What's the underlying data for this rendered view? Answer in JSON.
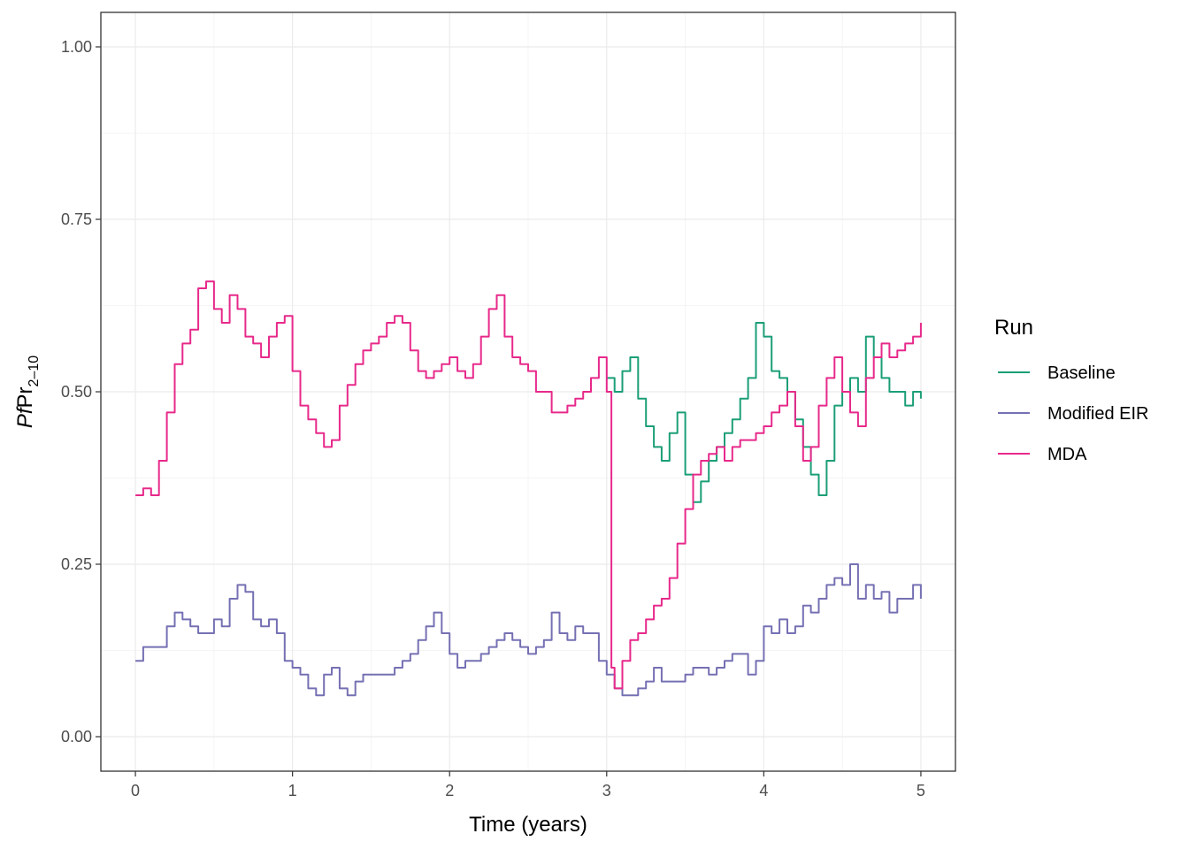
{
  "chart_data": {
    "type": "line",
    "xlabel": "Time (years)",
    "ylabel": {
      "italic": "Pf",
      "main": "Pr",
      "sub": "2–10"
    },
    "xlim": [
      -0.22,
      5.22
    ],
    "ylim": [
      -0.05,
      1.05
    ],
    "x_ticks": [
      0,
      1,
      2,
      3,
      4,
      5
    ],
    "x_tick_labels": [
      "0",
      "1",
      "2",
      "3",
      "4",
      "5"
    ],
    "y_ticks": [
      0,
      0.25,
      0.5,
      0.75,
      1.0
    ],
    "y_tick_labels": [
      "0.00",
      "0.25",
      "0.50",
      "0.75",
      "1.00"
    ],
    "grid": true,
    "legend": {
      "title": "Run",
      "placement": "right"
    },
    "series": [
      {
        "name": "Baseline",
        "color": "#1b9e77",
        "x": [
          3.0,
          3.05,
          3.1,
          3.15,
          3.2,
          3.25,
          3.3,
          3.35,
          3.4,
          3.45,
          3.5,
          3.55,
          3.6,
          3.65,
          3.7,
          3.75,
          3.8,
          3.85,
          3.9,
          3.95,
          4.0,
          4.05,
          4.1,
          4.15,
          4.2,
          4.25,
          4.3,
          4.35,
          4.4,
          4.45,
          4.5,
          4.55,
          4.6,
          4.65,
          4.7,
          4.75,
          4.8,
          4.85,
          4.9,
          4.95,
          5.0
        ],
        "values": [
          0.52,
          0.5,
          0.53,
          0.55,
          0.49,
          0.45,
          0.42,
          0.4,
          0.44,
          0.47,
          0.38,
          0.34,
          0.37,
          0.4,
          0.42,
          0.44,
          0.46,
          0.49,
          0.52,
          0.6,
          0.58,
          0.53,
          0.52,
          0.5,
          0.46,
          0.42,
          0.38,
          0.35,
          0.4,
          0.48,
          0.5,
          0.52,
          0.5,
          0.58,
          0.55,
          0.52,
          0.5,
          0.5,
          0.48,
          0.5,
          0.49
        ]
      },
      {
        "name": "Modified EIR",
        "color": "#7570b3",
        "x": [
          0.0,
          0.05,
          0.1,
          0.15,
          0.2,
          0.25,
          0.3,
          0.35,
          0.4,
          0.45,
          0.5,
          0.55,
          0.6,
          0.65,
          0.7,
          0.75,
          0.8,
          0.85,
          0.9,
          0.95,
          1.0,
          1.05,
          1.1,
          1.15,
          1.2,
          1.25,
          1.3,
          1.35,
          1.4,
          1.45,
          1.5,
          1.55,
          1.6,
          1.65,
          1.7,
          1.75,
          1.8,
          1.85,
          1.9,
          1.95,
          2.0,
          2.05,
          2.1,
          2.15,
          2.2,
          2.25,
          2.3,
          2.35,
          2.4,
          2.45,
          2.5,
          2.55,
          2.6,
          2.65,
          2.7,
          2.75,
          2.8,
          2.85,
          2.9,
          2.95,
          3.0,
          3.05,
          3.1,
          3.15,
          3.2,
          3.25,
          3.3,
          3.35,
          3.4,
          3.45,
          3.5,
          3.55,
          3.6,
          3.65,
          3.7,
          3.75,
          3.8,
          3.85,
          3.9,
          3.95,
          4.0,
          4.05,
          4.1,
          4.15,
          4.2,
          4.25,
          4.3,
          4.35,
          4.4,
          4.45,
          4.5,
          4.55,
          4.6,
          4.65,
          4.7,
          4.75,
          4.8,
          4.85,
          4.9,
          4.95,
          5.0
        ],
        "values": [
          0.11,
          0.13,
          0.13,
          0.13,
          0.16,
          0.18,
          0.17,
          0.16,
          0.15,
          0.15,
          0.17,
          0.16,
          0.2,
          0.22,
          0.21,
          0.17,
          0.16,
          0.17,
          0.15,
          0.11,
          0.1,
          0.09,
          0.07,
          0.06,
          0.09,
          0.1,
          0.07,
          0.06,
          0.08,
          0.09,
          0.09,
          0.09,
          0.09,
          0.1,
          0.11,
          0.12,
          0.14,
          0.16,
          0.18,
          0.15,
          0.12,
          0.1,
          0.11,
          0.11,
          0.12,
          0.13,
          0.14,
          0.15,
          0.14,
          0.13,
          0.12,
          0.13,
          0.14,
          0.18,
          0.15,
          0.14,
          0.16,
          0.15,
          0.15,
          0.11,
          0.09,
          0.07,
          0.06,
          0.06,
          0.07,
          0.08,
          0.1,
          0.08,
          0.08,
          0.08,
          0.09,
          0.1,
          0.1,
          0.09,
          0.1,
          0.11,
          0.12,
          0.12,
          0.09,
          0.11,
          0.16,
          0.15,
          0.17,
          0.15,
          0.16,
          0.19,
          0.18,
          0.2,
          0.22,
          0.23,
          0.22,
          0.25,
          0.2,
          0.22,
          0.2,
          0.21,
          0.18,
          0.2,
          0.2,
          0.22,
          0.2
        ]
      },
      {
        "name": "MDA",
        "color": "#e7298a",
        "x": [
          0.0,
          0.05,
          0.1,
          0.15,
          0.2,
          0.25,
          0.3,
          0.35,
          0.4,
          0.45,
          0.5,
          0.55,
          0.6,
          0.65,
          0.7,
          0.75,
          0.8,
          0.85,
          0.9,
          0.95,
          1.0,
          1.05,
          1.1,
          1.15,
          1.2,
          1.25,
          1.3,
          1.35,
          1.4,
          1.45,
          1.5,
          1.55,
          1.6,
          1.65,
          1.7,
          1.75,
          1.8,
          1.85,
          1.9,
          1.95,
          2.0,
          2.05,
          2.1,
          2.15,
          2.2,
          2.25,
          2.3,
          2.35,
          2.4,
          2.45,
          2.5,
          2.55,
          2.6,
          2.65,
          2.7,
          2.75,
          2.8,
          2.85,
          2.9,
          2.95,
          3.0,
          3.03,
          3.05,
          3.1,
          3.15,
          3.2,
          3.25,
          3.3,
          3.35,
          3.4,
          3.45,
          3.5,
          3.55,
          3.6,
          3.65,
          3.7,
          3.75,
          3.8,
          3.85,
          3.9,
          3.95,
          4.0,
          4.05,
          4.1,
          4.15,
          4.2,
          4.25,
          4.3,
          4.35,
          4.4,
          4.45,
          4.5,
          4.55,
          4.6,
          4.65,
          4.7,
          4.75,
          4.8,
          4.85,
          4.9,
          4.95,
          5.0
        ],
        "values": [
          0.35,
          0.36,
          0.35,
          0.4,
          0.47,
          0.54,
          0.57,
          0.59,
          0.65,
          0.66,
          0.62,
          0.6,
          0.64,
          0.62,
          0.58,
          0.57,
          0.55,
          0.58,
          0.6,
          0.61,
          0.53,
          0.48,
          0.46,
          0.44,
          0.42,
          0.43,
          0.48,
          0.51,
          0.54,
          0.56,
          0.57,
          0.58,
          0.6,
          0.61,
          0.6,
          0.56,
          0.53,
          0.52,
          0.53,
          0.54,
          0.55,
          0.53,
          0.52,
          0.54,
          0.58,
          0.62,
          0.64,
          0.58,
          0.55,
          0.54,
          0.53,
          0.5,
          0.5,
          0.47,
          0.47,
          0.48,
          0.49,
          0.5,
          0.52,
          0.55,
          0.5,
          0.1,
          0.07,
          0.11,
          0.14,
          0.15,
          0.17,
          0.19,
          0.2,
          0.23,
          0.28,
          0.33,
          0.38,
          0.4,
          0.41,
          0.42,
          0.4,
          0.42,
          0.43,
          0.43,
          0.44,
          0.45,
          0.47,
          0.48,
          0.5,
          0.45,
          0.4,
          0.42,
          0.48,
          0.52,
          0.55,
          0.5,
          0.47,
          0.45,
          0.52,
          0.55,
          0.57,
          0.55,
          0.56,
          0.57,
          0.58,
          0.6
        ]
      }
    ]
  }
}
